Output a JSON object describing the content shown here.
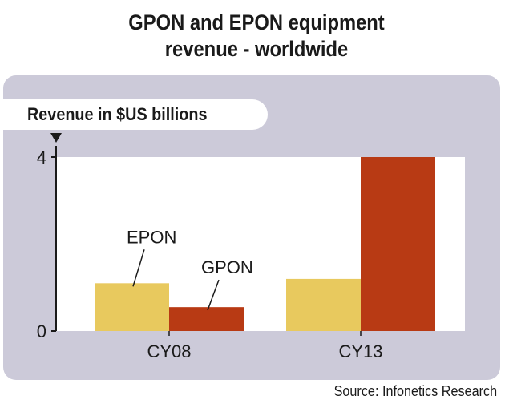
{
  "title_lines": [
    "GPON and EPON equipment",
    "revenue - worldwide"
  ],
  "source": "Source: Infonetics Research",
  "colors": {
    "EPON": "#e8c95e",
    "GPON": "#b83a14",
    "panel": "#cccad9",
    "plot_bg": "#ffffff"
  },
  "chart_data": {
    "type": "bar",
    "title": "GPON and EPON equipment revenue - worldwide",
    "ylabel": "Revenue in $US billions",
    "xlabel": "",
    "categories": [
      "CY08",
      "CY13"
    ],
    "series": [
      {
        "name": "EPON",
        "values": [
          1.1,
          1.2
        ]
      },
      {
        "name": "GPON",
        "values": [
          0.55,
          4.0
        ]
      }
    ],
    "ylim": [
      0,
      4
    ],
    "yticks": [
      "0",
      "4"
    ],
    "grid": false,
    "legend": "inline labels with leader lines on CY08 bars"
  }
}
